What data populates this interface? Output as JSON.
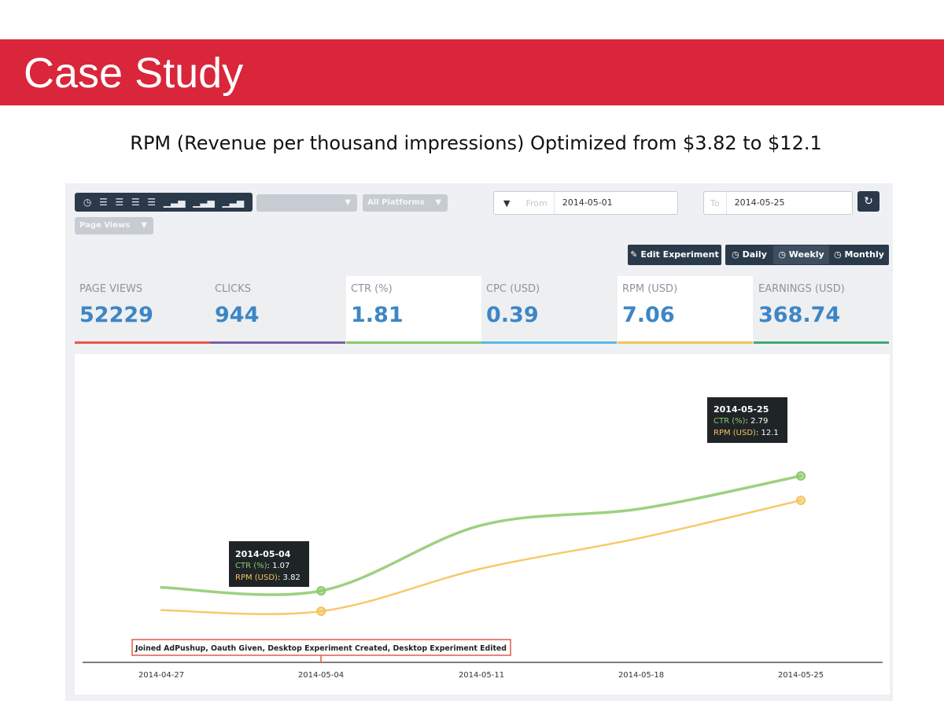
{
  "slide": {
    "title": "Case Study",
    "subtitle": "RPM (Revenue per thousand impressions) Optimized from $3.82 to $12.1"
  },
  "toolbar": {
    "icons": [
      "clock-icon",
      "list-icon",
      "list-icon",
      "list-icon",
      "list-icon",
      "bar-chart-icon",
      "bar-chart-icon",
      "bar-chart-icon"
    ],
    "site_dropdown": "",
    "platform_dropdown": "All Platforms",
    "metric_dropdown": "Page Views",
    "from_label": "From",
    "from_value": "2014-05-01",
    "to_label": "To",
    "to_value": "2014-05-25",
    "edit_experiment": "Edit Experiment",
    "daily": "Daily",
    "weekly": "Weekly",
    "monthly": "Monthly"
  },
  "stats": [
    {
      "label": "PAGE VIEWS",
      "value": "52229",
      "color": "#e8574a"
    },
    {
      "label": "CLICKS",
      "value": "944",
      "color": "#7a5ea8"
    },
    {
      "label": "CTR (%)",
      "value": "1.81",
      "color": "#8cc96a"
    },
    {
      "label": "CPC (USD)",
      "value": "0.39",
      "color": "#5bb8e6"
    },
    {
      "label": "RPM (USD)",
      "value": "7.06",
      "color": "#f2c45a"
    },
    {
      "label": "EARNINGS (USD)",
      "value": "368.74",
      "color": "#3fa87a"
    }
  ],
  "chart_data": {
    "type": "line",
    "x_ticks": [
      "2014-04-27",
      "2014-05-04",
      "2014-05-11",
      "2014-05-18",
      "2014-05-25"
    ],
    "series": [
      {
        "name": "CTR (%)",
        "color": "#8cc96a",
        "x": [
          "2014-04-27",
          "2014-05-04",
          "2014-05-11",
          "2014-05-18",
          "2014-05-25"
        ],
        "values": [
          1.12,
          1.07,
          2.05,
          2.3,
          2.79
        ]
      },
      {
        "name": "RPM (USD)",
        "color": "#f5c35a",
        "x": [
          "2014-04-27",
          "2014-05-04",
          "2014-05-11",
          "2014-05-18",
          "2014-05-25"
        ],
        "values": [
          3.9,
          3.82,
          7.0,
          9.3,
          12.1
        ]
      }
    ],
    "tooltips": [
      {
        "date": "2014-05-04",
        "ctr_label": "CTR (%)",
        "ctr_value": "1.07",
        "rpm_label": "RPM (USD)",
        "rpm_value": "3.82"
      },
      {
        "date": "2014-05-25",
        "ctr_label": "CTR (%)",
        "ctr_value": "2.79",
        "rpm_label": "RPM (USD)",
        "rpm_value": "12.1"
      }
    ],
    "annotation": "Joined AdPushup, Oauth Given, Desktop Experiment Created, Desktop Experiment Edited",
    "grid": false
  }
}
